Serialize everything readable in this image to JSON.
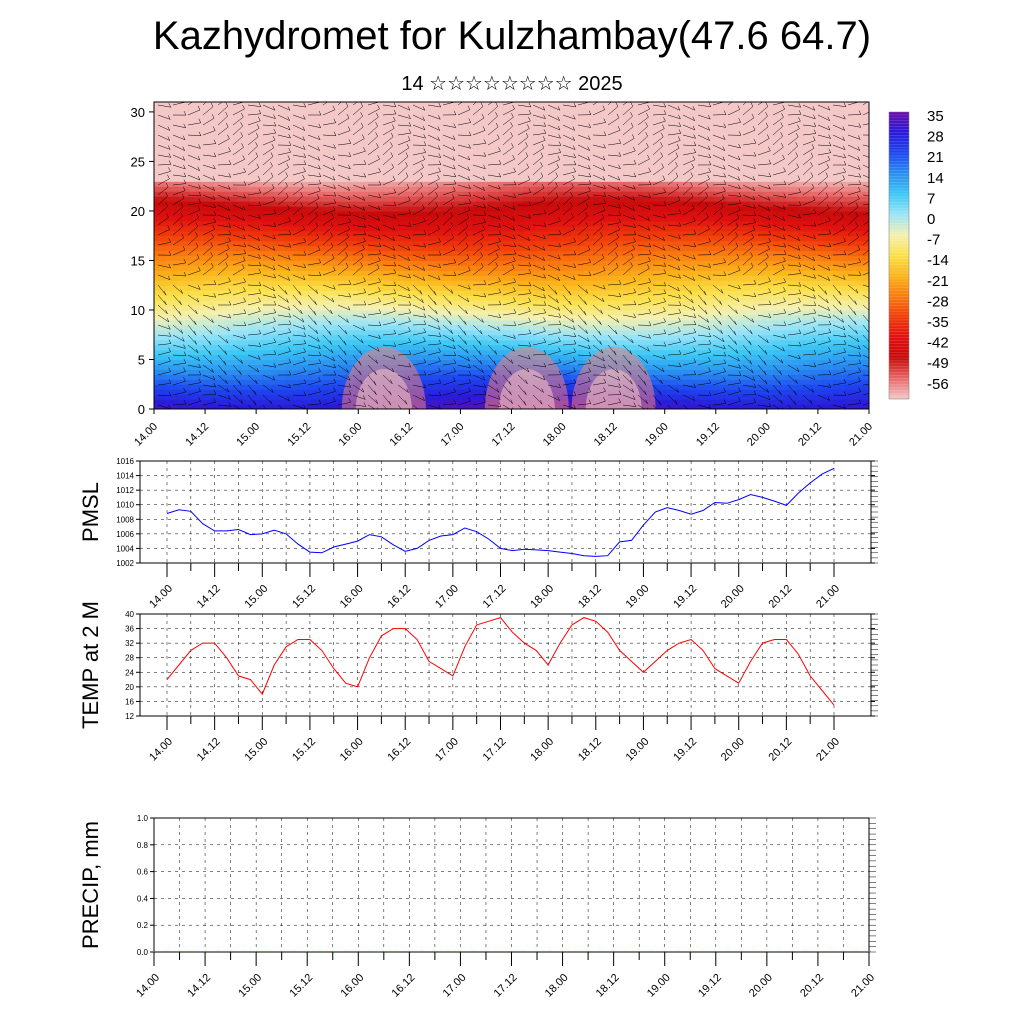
{
  "header": {
    "title": "Kazhydromet for Kulzhambay(47.6 64.7)",
    "subtitle": "14 ☆☆☆☆☆☆☆☆ 2025"
  },
  "colors": {
    "pmsl_line": "#0000ff",
    "temp_line": "#ff0000",
    "precip_bars": "#00aa00",
    "wind_barbs": "#000000"
  },
  "chart_data": [
    {
      "type": "heatmap",
      "title": "",
      "xlabel": "",
      "ylabel": "",
      "x_tick_labels": [
        "14.00",
        "14.12",
        "15.00",
        "15.12",
        "16.00",
        "16.12",
        "17.00",
        "17.12",
        "18.00",
        "18.12",
        "19.00",
        "19.12",
        "20.00",
        "20.12",
        "21.00"
      ],
      "y_ticks": [
        0,
        5,
        10,
        15,
        20,
        25,
        30
      ],
      "ylim": [
        0,
        31
      ],
      "colorbar_labels": [
        "35",
        "28",
        "21",
        "14",
        "7",
        "0",
        "-7",
        "-14",
        "-21",
        "-28",
        "-35",
        "-42",
        "-49",
        "-56"
      ],
      "colorbar_range": [
        -60,
        38
      ],
      "colorbar_colors": [
        "#6a0dad",
        "#2a1ad8",
        "#1e46f0",
        "#2a8ff0",
        "#3cc8f5",
        "#9ae4f8",
        "#f5f0b0",
        "#fbe04a",
        "#fbb41a",
        "#fa7a10",
        "#f03c0a",
        "#e01010",
        "#c80a0a",
        "#e86a6a",
        "#f5c8c8"
      ],
      "warm_cores_x_index": [
        4.5,
        7.3,
        9.0
      ],
      "overlay": "wind barbs"
    },
    {
      "type": "line",
      "ylabel": "PMSL",
      "ylim": [
        1002,
        1016
      ],
      "y_ticks": [
        1002,
        1004,
        1006,
        1008,
        1010,
        1012,
        1014,
        1016
      ],
      "x_tick_labels": [
        "14.00",
        "14.12",
        "15.00",
        "15.12",
        "16.00",
        "16.12",
        "17.00",
        "17.12",
        "18.00",
        "18.12",
        "19.00",
        "19.12",
        "20.00",
        "20.12",
        "21.00"
      ],
      "series": [
        {
          "values": [
            1008.8,
            1009.3,
            1009.1,
            1007.4,
            1006.4,
            1006.4,
            1006.6,
            1005.9,
            1006.0,
            1006.5,
            1006.0,
            1004.6,
            1003.5,
            1003.4,
            1004.2,
            1004.6,
            1005.0,
            1005.9,
            1005.6,
            1004.5,
            1003.6,
            1004.0,
            1005.1,
            1005.7,
            1005.9,
            1006.8,
            1006.3,
            1005.3,
            1004.0,
            1003.7,
            1003.9,
            1003.8,
            1003.7,
            1003.5,
            1003.3,
            1003.0,
            1002.9,
            1003.0,
            1004.9,
            1005.1,
            1007.2,
            1009.0,
            1009.6,
            1009.2,
            1008.7,
            1009.2,
            1010.3,
            1010.2,
            1010.7,
            1011.4,
            1011.0,
            1010.5,
            1009.9,
            1011.6,
            1013.0,
            1014.2,
            1015.0
          ]
        }
      ]
    },
    {
      "type": "line",
      "ylabel": "TEMP at 2 M",
      "ylim": [
        12,
        40
      ],
      "y_ticks": [
        12,
        16,
        20,
        24,
        28,
        32,
        36,
        40
      ],
      "x_tick_labels": [
        "14.00",
        "14.12",
        "15.00",
        "15.12",
        "16.00",
        "16.12",
        "17.00",
        "17.12",
        "18.00",
        "18.12",
        "19.00",
        "19.12",
        "20.00",
        "20.12",
        "21.00"
      ],
      "series": [
        {
          "values": [
            22,
            26,
            30,
            32,
            32,
            28,
            23,
            22,
            18,
            26,
            31,
            33,
            33,
            30,
            25,
            21,
            20,
            28,
            34,
            36,
            36,
            33,
            27,
            25,
            23,
            31,
            37,
            38,
            39,
            35,
            32,
            30,
            26,
            32,
            37,
            39,
            38,
            35,
            30,
            27,
            24,
            27,
            30,
            32,
            33,
            30,
            25,
            23,
            21,
            27,
            32,
            33,
            33,
            29,
            23,
            19,
            15
          ]
        }
      ]
    },
    {
      "type": "bar",
      "ylabel": "PRECIP, mm",
      "ylim": [
        0,
        1
      ],
      "y_ticks": [
        "0.0",
        "0.2",
        "0.4",
        "0.6",
        "0.8",
        "1.0"
      ],
      "x_tick_labels": [
        "14.00",
        "14.12",
        "15.00",
        "15.12",
        "16.00",
        "16.12",
        "17.00",
        "17.12",
        "18.00",
        "18.12",
        "19.00",
        "19.12",
        "20.00",
        "20.12",
        "21.00"
      ],
      "values": [
        0,
        0,
        0,
        0,
        0,
        0,
        0,
        0,
        0,
        0,
        0,
        0,
        0,
        0,
        0,
        0,
        0,
        0,
        0,
        0,
        0,
        0,
        0,
        0,
        0,
        0,
        0,
        0,
        0,
        0,
        0,
        0,
        0,
        0,
        0,
        0,
        0,
        0,
        0,
        0,
        0,
        0,
        0,
        0,
        0,
        0,
        0,
        0,
        0,
        0,
        0,
        0,
        0,
        0,
        0,
        0,
        0
      ]
    }
  ]
}
